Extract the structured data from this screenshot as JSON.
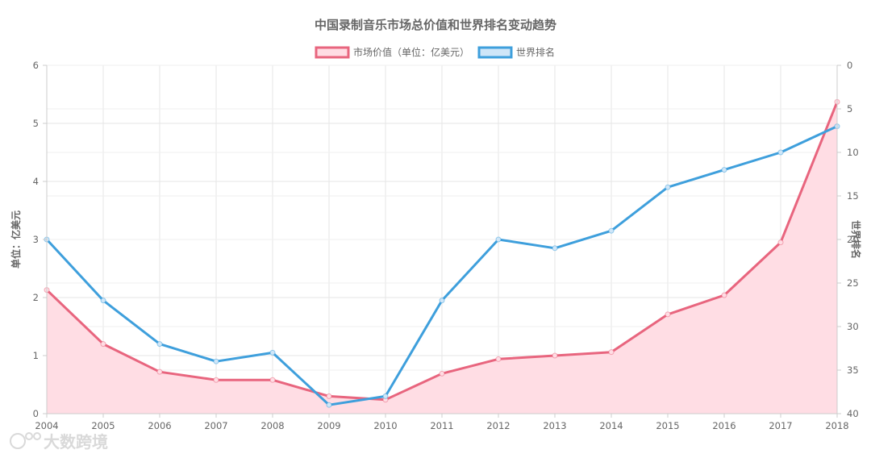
{
  "chart_data": {
    "type": "line",
    "title": "中国录制音乐市场总价值和世界排名变动趋势",
    "categories": [
      "2004",
      "2005",
      "2006",
      "2007",
      "2008",
      "2009",
      "2010",
      "2011",
      "2012",
      "2013",
      "2014",
      "2015",
      "2016",
      "2017",
      "2018"
    ],
    "series": [
      {
        "name": "市场价值（单位：亿美元）",
        "axis": "left",
        "color": "#e8657e",
        "fill": "#ffdde4",
        "area": true,
        "values": [
          2.13,
          1.2,
          0.72,
          0.58,
          0.58,
          0.3,
          0.24,
          0.69,
          0.94,
          1.0,
          1.06,
          1.71,
          2.04,
          2.95,
          5.37
        ]
      },
      {
        "name": "世界排名",
        "axis": "right",
        "color": "#3e9fdc",
        "fill": "#cfe6f8",
        "area": false,
        "values": [
          20,
          27,
          32,
          34,
          33,
          39,
          38,
          27,
          20,
          21,
          19,
          14,
          12,
          10,
          7
        ]
      }
    ],
    "y_left": {
      "label": "单位：亿美元",
      "min": 0,
      "max": 6,
      "ticks": [
        "0",
        "1",
        "2",
        "3",
        "4",
        "5",
        "6"
      ]
    },
    "y_right": {
      "label": "世界排名",
      "min": 0,
      "max": 40,
      "reversed": true,
      "ticks": [
        "0",
        "5",
        "10",
        "15",
        "20",
        "25",
        "30",
        "35",
        "40"
      ]
    },
    "grid": true,
    "legend_position": "top-center"
  },
  "watermark": {
    "text": "大数跨境"
  }
}
